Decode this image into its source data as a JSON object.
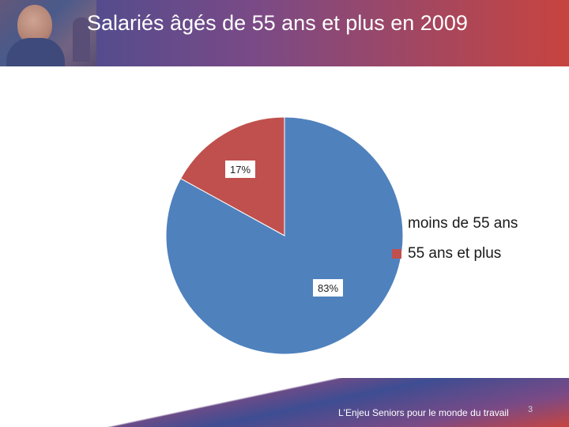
{
  "slide": {
    "title": "Salariés âgés de 55 ans et plus en 2009",
    "footer": "L'Enjeu Seniors pour le monde du travail",
    "page_number": "3"
  },
  "chart_data": {
    "type": "pie",
    "title": "",
    "categories": [
      "moins de 55 ans",
      "55 ans et plus"
    ],
    "values": [
      83,
      17
    ],
    "labels": [
      "83%",
      "17%"
    ],
    "colors": [
      "#4f81bd",
      "#c0504d"
    ],
    "legend_position": "right"
  }
}
